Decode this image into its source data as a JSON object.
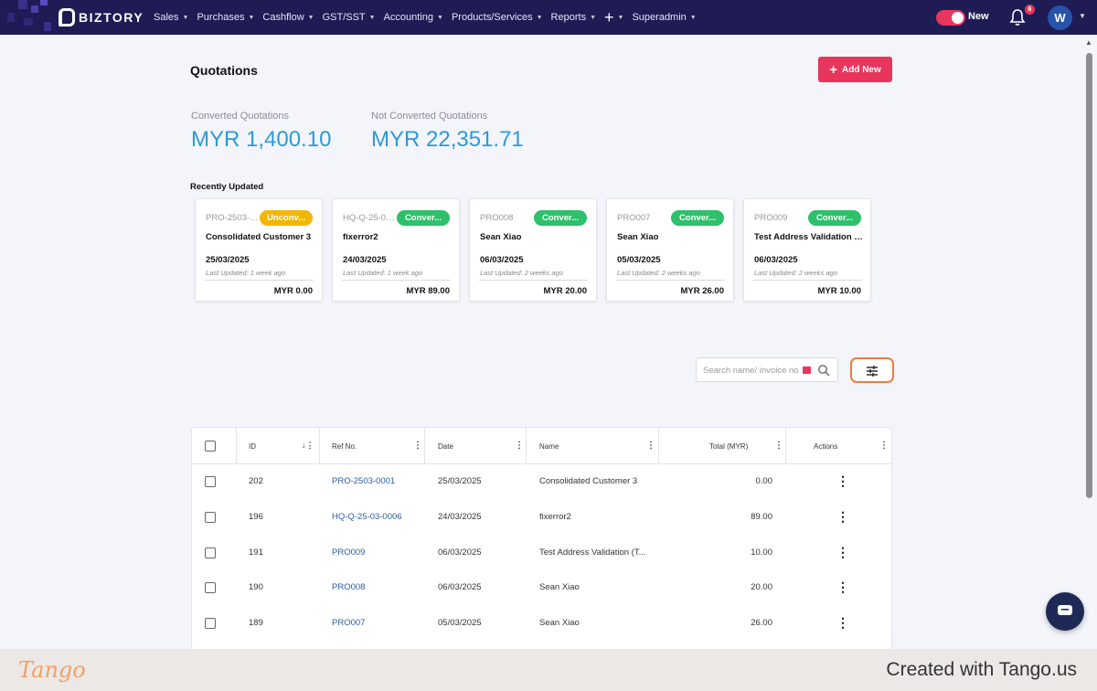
{
  "nav": {
    "brand": "BIZTORY",
    "menu": [
      {
        "label": "Sales"
      },
      {
        "label": "Purchases"
      },
      {
        "label": "Cashflow"
      },
      {
        "label": "GST/SST"
      },
      {
        "label": "Accounting"
      },
      {
        "label": "Products/Services"
      },
      {
        "label": "Reports"
      }
    ],
    "plus": "+",
    "superadmin": "Superadmin",
    "toggle_label": "New",
    "notification_count": "6",
    "avatar_initial": "W",
    "accent": "#e8355c",
    "bar_color": "#1e1b55"
  },
  "page": {
    "title": "Quotations",
    "add_button": "Add New"
  },
  "stats": {
    "converted_label": "Converted Quotations",
    "converted_value": "MYR 1,400.10",
    "not_converted_label": "Not Converted Quotations",
    "not_converted_value": "MYR 22,351.71"
  },
  "recent": {
    "title": "Recently Updated",
    "cards": [
      {
        "ref": "PRO-2503-0...",
        "status": "Unconv...",
        "name": "Consolidated Customer 3",
        "date": "25/03/2025",
        "updated": "Last Updated: 1 week ago",
        "amount": "MYR 0.00"
      },
      {
        "ref": "HQ-Q-25-03...",
        "status": "Conver...",
        "name": "fixerror2",
        "date": "24/03/2025",
        "updated": "Last Updated: 1 week ago",
        "amount": "MYR 89.00"
      },
      {
        "ref": "PRO008",
        "status": "Conver...",
        "name": "Sean Xiao",
        "date": "06/03/2025",
        "updated": "Last Updated: 2 weeks ago",
        "amount": "MYR 20.00"
      },
      {
        "ref": "PRO007",
        "status": "Conver...",
        "name": "Sean Xiao",
        "date": "05/03/2025",
        "updated": "Last Updated: 2 weeks ago",
        "amount": "MYR 26.00"
      },
      {
        "ref": "PRO009",
        "status": "Conver...",
        "name": "Test Address Validation (...",
        "date": "06/03/2025",
        "updated": "Last Updated: 2 weeks ago",
        "amount": "MYR 10.00"
      }
    ],
    "unconverted_color": "#f2b705",
    "converted_color": "#2ec06a"
  },
  "search": {
    "placeholder": "Search name/ invoice no"
  },
  "table": {
    "headers": {
      "id": "ID",
      "ref": "Ref No.",
      "date": "Date",
      "name": "Name",
      "total": "Total (MYR)",
      "actions": "Actions"
    },
    "rows": [
      {
        "id": "202",
        "ref": "PRO-2503-0001",
        "date": "25/03/2025",
        "name": "Consolidated Customer 3",
        "total": "0.00"
      },
      {
        "id": "196",
        "ref": "HQ-Q-25-03-0006",
        "date": "24/03/2025",
        "name": "fixerror2",
        "total": "89.00"
      },
      {
        "id": "191",
        "ref": "PRO009",
        "date": "06/03/2025",
        "name": "Test Address Validation (T...",
        "total": "10.00"
      },
      {
        "id": "190",
        "ref": "PRO008",
        "date": "06/03/2025",
        "name": "Sean Xiao",
        "total": "20.00"
      },
      {
        "id": "189",
        "ref": "PRO007",
        "date": "05/03/2025",
        "name": "Sean Xiao",
        "total": "26.00"
      }
    ]
  },
  "footer": {
    "logo": "Tango",
    "credit": "Created with Tango.us"
  }
}
